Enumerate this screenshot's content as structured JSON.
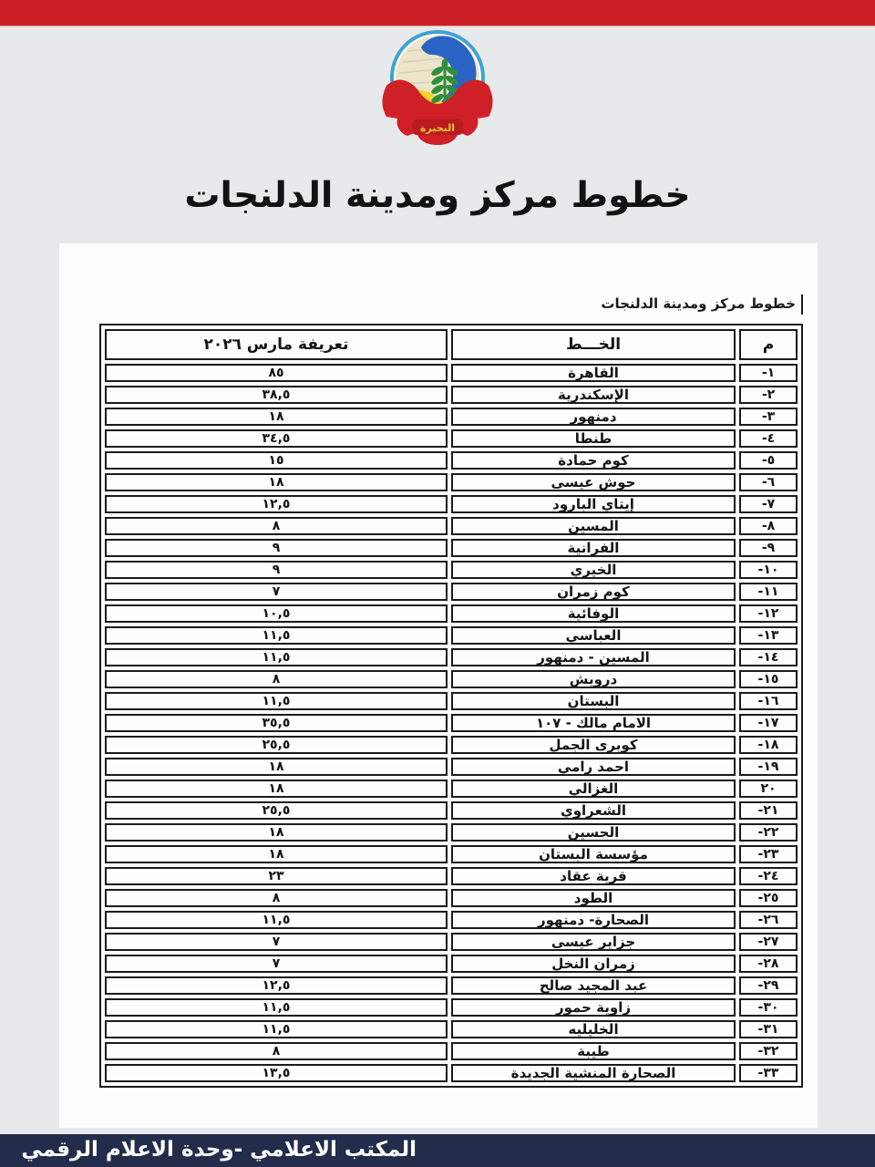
{
  "page": {
    "title": "خطوط مركز ومدينة الدلنجات",
    "caption": "خطوط مركز ومدينة الدلنجات",
    "footer": "المكتب الاعلامي -وحدة الاعلام الرقمي"
  },
  "logo": {
    "label": "البحيرة"
  },
  "colors": {
    "accent_red": "#cc2027",
    "footer_navy": "#232d4b",
    "page_background": "#e8e9ea",
    "paper": "#fdfdfe",
    "logo_blue": "#2a63c4",
    "logo_green": "#2f8f3c",
    "logo_yellow": "#f6d42c",
    "logo_ring": "#3fa3d2"
  },
  "table": {
    "headers": {
      "num": "م",
      "line": "الخـــط",
      "tariff": "تعريفة مارس ٢٠٢٦"
    },
    "rows": [
      {
        "num": "١-",
        "line": "القاهرة",
        "tariff": "٨٥"
      },
      {
        "num": "٢-",
        "line": "الإسكندرية",
        "tariff": "٣٨,٥"
      },
      {
        "num": "٣-",
        "line": "دمنهور",
        "tariff": "١٨"
      },
      {
        "num": "٤-",
        "line": "طنطا",
        "tariff": "٣٤,٥"
      },
      {
        "num": "٥-",
        "line": "كوم حمادة",
        "tariff": "١٥"
      },
      {
        "num": "٦-",
        "line": "حوش عيسى",
        "tariff": "١٨"
      },
      {
        "num": "٧-",
        "line": "إيتاي البارود",
        "tariff": "١٢,٥"
      },
      {
        "num": "٨-",
        "line": "المسين",
        "tariff": "٨"
      },
      {
        "num": "٩-",
        "line": "الفرانية",
        "tariff": "٩"
      },
      {
        "num": "١٠-",
        "line": "الخيري",
        "tariff": "٩"
      },
      {
        "num": "١١-",
        "line": "كوم زمران",
        "tariff": "٧"
      },
      {
        "num": "١٢-",
        "line": "الوفائية",
        "tariff": "١٠,٥"
      },
      {
        "num": "١٣-",
        "line": "العباسي",
        "tariff": "١١,٥"
      },
      {
        "num": "١٤-",
        "line": "المسين - دمنهور",
        "tariff": "١١,٥"
      },
      {
        "num": "١٥-",
        "line": "درويش",
        "tariff": "٨"
      },
      {
        "num": "١٦-",
        "line": "البستان",
        "tariff": "١١,٥"
      },
      {
        "num": "١٧-",
        "line": "الامام مالك - ١٠٧",
        "tariff": "٣٥,٥"
      },
      {
        "num": "١٨-",
        "line": "كوبرى الجمل",
        "tariff": "٢٥,٥"
      },
      {
        "num": "١٩-",
        "line": "احمد رامي",
        "tariff": "١٨"
      },
      {
        "num": "٢٠",
        "line": "الغزالي",
        "tariff": "١٨"
      },
      {
        "num": "٢١-",
        "line": "الشعراوي",
        "tariff": "٢٥,٥"
      },
      {
        "num": "٢٢-",
        "line": "الحسين",
        "tariff": "١٨"
      },
      {
        "num": "٢٣-",
        "line": "مؤسسة البستان",
        "tariff": "١٨"
      },
      {
        "num": "٢٤-",
        "line": "قرية عقاد",
        "tariff": "٢٣"
      },
      {
        "num": "٢٥-",
        "line": "الطود",
        "tariff": "٨"
      },
      {
        "num": "٢٦-",
        "line": "الصحارة- دمنهور",
        "tariff": "١١,٥"
      },
      {
        "num": "٢٧-",
        "line": "جزاير عيسى",
        "tariff": "٧"
      },
      {
        "num": "٢٨-",
        "line": "زمران النخل",
        "tariff": "٧"
      },
      {
        "num": "٢٩-",
        "line": "عبد المجيد صالح",
        "tariff": "١٢,٥"
      },
      {
        "num": "٣٠-",
        "line": "زاوية حمور",
        "tariff": "١١,٥"
      },
      {
        "num": "٣١-",
        "line": "الخليليه",
        "tariff": "١١,٥"
      },
      {
        "num": "٣٢-",
        "line": "طيبة",
        "tariff": "٨"
      },
      {
        "num": "٣٣-",
        "line": "الصحارة المنشية الجديدة",
        "tariff": "١٣,٥"
      }
    ]
  }
}
